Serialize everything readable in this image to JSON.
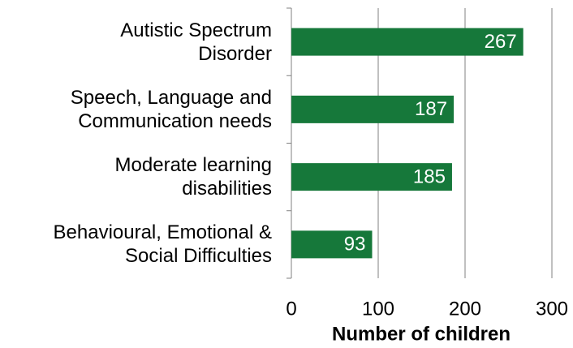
{
  "chart_data": {
    "type": "bar",
    "orientation": "horizontal",
    "categories": [
      "Autistic Spectrum\nDisorder",
      "Speech, Language and\nCommunication needs",
      "Moderate learning\ndisabilities",
      "Behavioural, Emotional &\nSocial Difficulties"
    ],
    "values": [
      267,
      187,
      185,
      93
    ],
    "color": "#16783a",
    "xlabel": "Number of children",
    "xlim": [
      0,
      300
    ],
    "xticks": [
      0,
      100,
      200,
      300
    ],
    "grid": true
  }
}
